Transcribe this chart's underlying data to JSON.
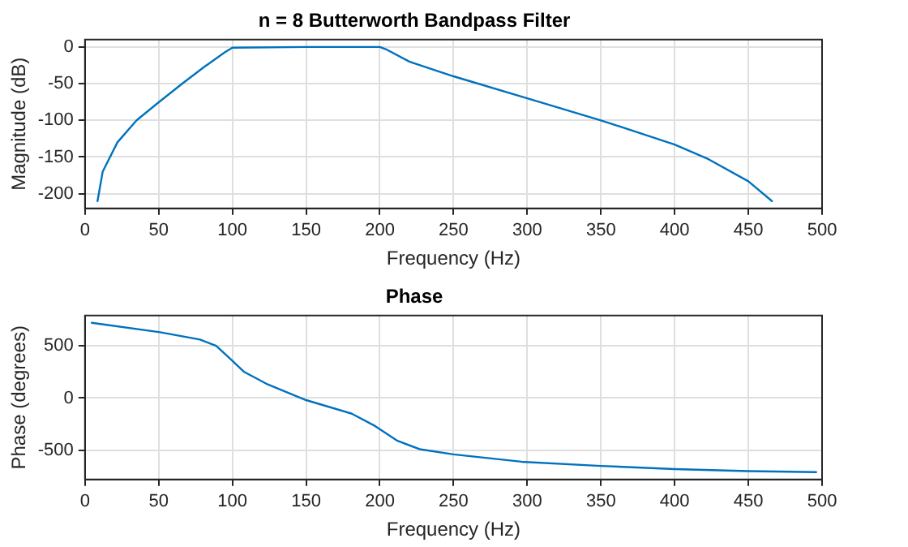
{
  "chart_data": [
    {
      "type": "line",
      "title": "n = 8 Butterworth Bandpass Filter",
      "xlabel": "Frequency (Hz)",
      "ylabel": "Magnitude (dB)",
      "xlim": [
        0,
        500
      ],
      "xticks": [
        0,
        50,
        100,
        150,
        200,
        250,
        300,
        350,
        400,
        450,
        500
      ],
      "ylim": [
        -220,
        10
      ],
      "yticks": [
        -200,
        -150,
        -100,
        -50,
        0
      ],
      "grid": true,
      "legend": false,
      "marker": "none",
      "line_style": "solid",
      "series": [
        {
          "color": "#0072bd",
          "x": [
            8.5,
            12,
            22,
            35,
            49,
            66,
            81,
            95,
            100,
            150,
            200,
            204,
            220,
            250,
            300,
            350,
            400,
            423,
            450,
            466
          ],
          "values": [
            -210,
            -170,
            -130,
            -100,
            -77,
            -50,
            -27,
            -7,
            -1,
            0,
            0,
            -3,
            -20,
            -40,
            -70,
            -100,
            -133,
            -153,
            -183,
            -210
          ]
        }
      ]
    },
    {
      "type": "line",
      "title": "Phase",
      "xlabel": "Frequency (Hz)",
      "ylabel": "Phase (degrees)",
      "xlim": [
        0,
        500
      ],
      "xticks": [
        0,
        50,
        100,
        150,
        200,
        250,
        300,
        350,
        400,
        450,
        500
      ],
      "ylim": [
        -780,
        790
      ],
      "yticks": [
        -500,
        0,
        500
      ],
      "grid": true,
      "legend": false,
      "marker": "none",
      "line_style": "solid",
      "series": [
        {
          "color": "#0072bd",
          "x": [
            4.6,
            51,
            78,
            89,
            99,
            108,
            124,
            150,
            181,
            197,
            212,
            227,
            250,
            296,
            350,
            400,
            450,
            496
          ],
          "values": [
            720,
            630,
            560,
            500,
            370,
            250,
            130,
            -20,
            -150,
            -270,
            -410,
            -490,
            -540,
            -610,
            -650,
            -680,
            -700,
            -710
          ]
        }
      ]
    }
  ]
}
